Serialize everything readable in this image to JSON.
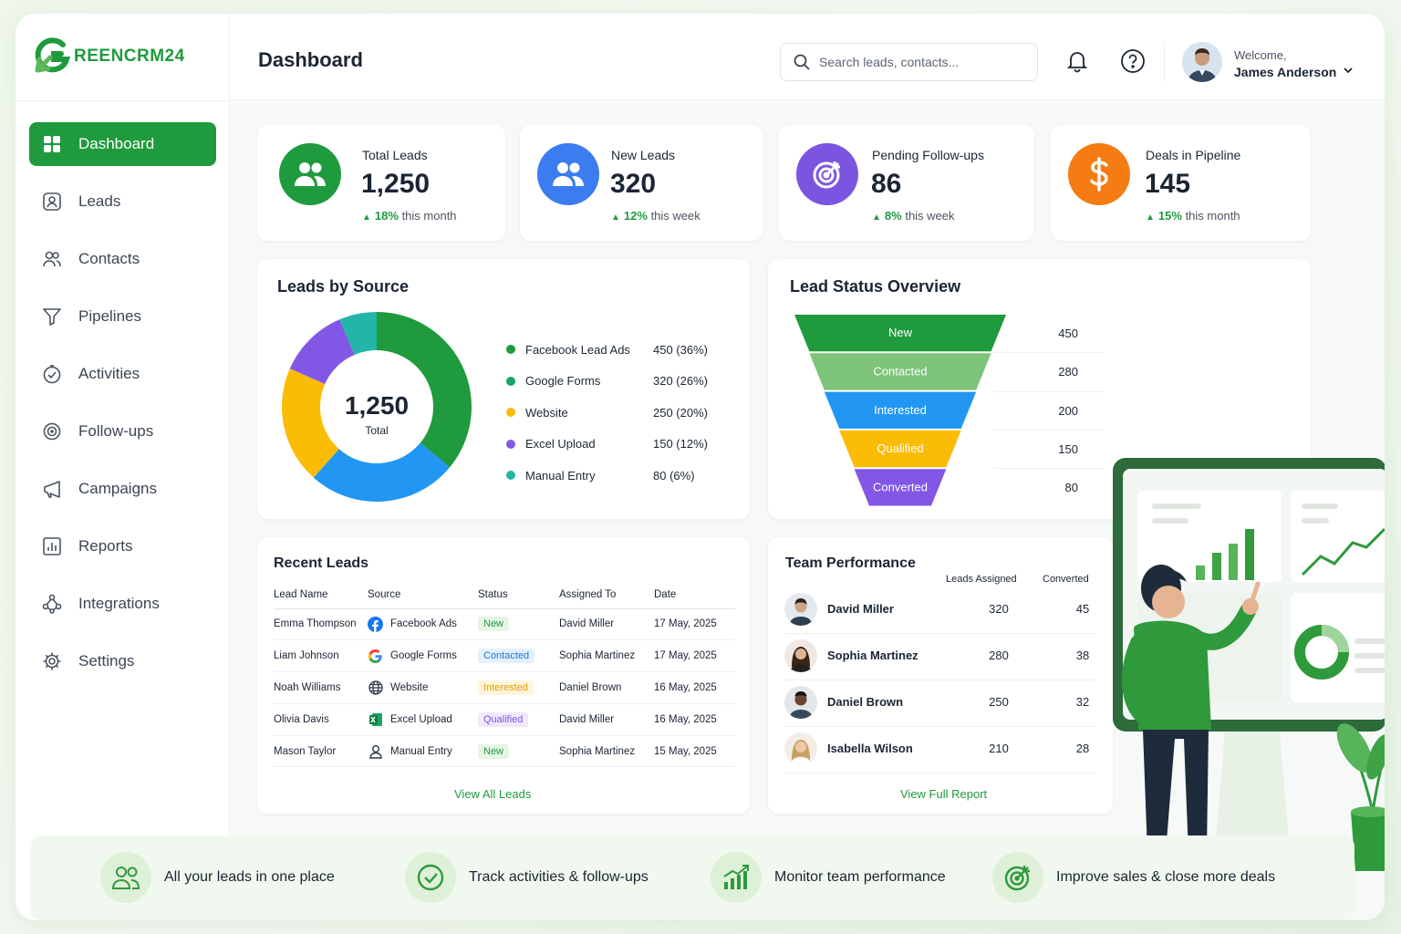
{
  "brand": {
    "logo_text": "REENCRM24",
    "logo_letter": "G"
  },
  "header": {
    "title": "Dashboard",
    "search_placeholder": "Search leads, contacts...",
    "welcome": "Welcome,",
    "user_name": "James Anderson"
  },
  "sidebar": {
    "items": [
      {
        "label": "Dashboard",
        "icon": "grid-icon",
        "active": true
      },
      {
        "label": "Leads",
        "icon": "user-card-icon"
      },
      {
        "label": "Contacts",
        "icon": "users-icon"
      },
      {
        "label": "Pipelines",
        "icon": "filter-icon"
      },
      {
        "label": "Activities",
        "icon": "check-circle-icon"
      },
      {
        "label": "Follow-ups",
        "icon": "target-icon"
      },
      {
        "label": "Campaigns",
        "icon": "megaphone-icon"
      },
      {
        "label": "Reports",
        "icon": "bar-chart-icon"
      },
      {
        "label": "Integrations",
        "icon": "nodes-icon"
      },
      {
        "label": "Settings",
        "icon": "gear-icon"
      }
    ]
  },
  "stats": [
    {
      "label": "Total Leads",
      "value": "1,250",
      "delta": "18%",
      "period": "this month",
      "color": "#1f9a3d",
      "icon": "users-icon"
    },
    {
      "label": "New Leads",
      "value": "320",
      "delta": "12%",
      "period": "this week",
      "color": "#3b7cf0",
      "icon": "users-icon"
    },
    {
      "label": "Pending Follow-ups",
      "value": "86",
      "delta": "8%",
      "period": "this week",
      "color": "#7b55e0",
      "icon": "target-icon"
    },
    {
      "label": "Deals in Pipeline",
      "value": "145",
      "delta": "15%",
      "period": "this month",
      "color": "#f57c12",
      "icon": "dollar-icon"
    }
  ],
  "leads_by_source": {
    "title": "Leads by Source",
    "center_value": "1,250",
    "center_label": "Total",
    "legend": [
      {
        "name": "Facebook Lead Ads",
        "value": "450 (36%)",
        "color": "#1f9a3d"
      },
      {
        "name": "Google Forms",
        "value": "320 (26%)",
        "color": "#2196f3"
      },
      {
        "name": "Website",
        "value": "250 (20%)",
        "color": "#fbbc05"
      },
      {
        "name": "Excel Upload",
        "value": "150 (12%)",
        "color": "#8257e6"
      },
      {
        "name": "Manual Entry",
        "value": "80 (6%)",
        "color": "#22b5a8"
      }
    ]
  },
  "chart_data": [
    {
      "type": "pie",
      "title": "Leads by Source",
      "categories": [
        "Facebook Lead Ads",
        "Google Forms",
        "Website",
        "Excel Upload",
        "Manual Entry"
      ],
      "values": [
        450,
        320,
        250,
        150,
        80
      ],
      "colors": [
        "#1f9a3d",
        "#2196f3",
        "#fbbc05",
        "#8257e6",
        "#22b5a8"
      ],
      "donut": true
    },
    {
      "type": "bar",
      "title": "Lead Status Overview",
      "categories": [
        "New",
        "Contacted",
        "Interested",
        "Qualified",
        "Converted"
      ],
      "values": [
        450,
        280,
        200,
        150,
        80
      ],
      "colors": [
        "#1f9a3d",
        "#7dc37a",
        "#2196f3",
        "#fbbc05",
        "#8257e6"
      ],
      "style": "funnel"
    }
  ],
  "lead_status": {
    "title": "Lead Status Overview",
    "stages": [
      {
        "label": "New",
        "value": "450"
      },
      {
        "label": "Contacted",
        "value": "280"
      },
      {
        "label": "Interested",
        "value": "200"
      },
      {
        "label": "Qualified",
        "value": "150"
      },
      {
        "label": "Converted",
        "value": "80"
      }
    ]
  },
  "recent_leads": {
    "title": "Recent Leads",
    "columns": [
      "Lead Name",
      "Source",
      "Status",
      "Assigned To",
      "Date"
    ],
    "rows": [
      {
        "name": "Emma Thompson",
        "source": "Facebook Ads",
        "source_icon": "facebook-icon",
        "status": "New",
        "assigned": "David Miller",
        "date": "17 May, 2025"
      },
      {
        "name": "Liam Johnson",
        "source": "Google Forms",
        "source_icon": "google-icon",
        "status": "Contacted",
        "assigned": "Sophia Martinez",
        "date": "17 May, 2025"
      },
      {
        "name": "Noah Williams",
        "source": "Website",
        "source_icon": "globe-icon",
        "status": "Interested",
        "assigned": "Daniel Brown",
        "date": "16 May, 2025"
      },
      {
        "name": "Olivia Davis",
        "source": "Excel Upload",
        "source_icon": "excel-icon",
        "status": "Qualified",
        "assigned": "David Miller",
        "date": "16 May, 2025"
      },
      {
        "name": "Mason Taylor",
        "source": "Manual Entry",
        "source_icon": "person-icon",
        "status": "New",
        "assigned": "Sophia Martinez",
        "date": "15 May, 2025"
      }
    ],
    "link": "View All Leads"
  },
  "team": {
    "title": "Team Performance",
    "col_assigned": "Leads Assigned",
    "col_converted": "Converted",
    "members": [
      {
        "name": "David Miller",
        "assigned": "320",
        "converted": "45"
      },
      {
        "name": "Sophia Martinez",
        "assigned": "280",
        "converted": "38"
      },
      {
        "name": "Daniel Brown",
        "assigned": "250",
        "converted": "32"
      },
      {
        "name": "Isabella Wilson",
        "assigned": "210",
        "converted": "28"
      }
    ],
    "link": "View Full Report"
  },
  "features": [
    {
      "label": "All your leads in one place",
      "icon": "users-icon"
    },
    {
      "label": "Track activities & follow-ups",
      "icon": "check-circle-icon"
    },
    {
      "label": "Monitor team performance",
      "icon": "growth-chart-icon"
    },
    {
      "label": "Improve sales & close more deals",
      "icon": "target-icon"
    }
  ]
}
